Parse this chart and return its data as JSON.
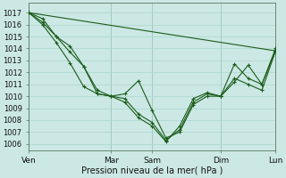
{
  "background_color": "#cce8e4",
  "grid_color": "#aad4cc",
  "line_color": "#1a5c1a",
  "xlabel": "Pression niveau de la mer( hPa )",
  "ylim": [
    1005.5,
    1017.8
  ],
  "yticks": [
    1006,
    1007,
    1008,
    1009,
    1010,
    1011,
    1012,
    1013,
    1014,
    1015,
    1016,
    1017
  ],
  "xlim": [
    0,
    9.0
  ],
  "xtick_labels": [
    "Ven",
    "Mar",
    "Sam",
    "Dim",
    "Lun"
  ],
  "xtick_positions": [
    0,
    3,
    4.5,
    7,
    9
  ],
  "vline_x": [
    0,
    3,
    4.5,
    7,
    9
  ],
  "series": [
    {
      "x": [
        0,
        9.0
      ],
      "y": [
        1017,
        1013.8
      ],
      "markers": false
    },
    {
      "x": [
        0,
        0.5,
        1.0,
        1.5,
        2.0,
        2.5,
        3.0,
        3.5,
        4.0,
        4.5,
        5.0,
        5.5,
        6.0,
        6.5,
        7.0,
        7.5,
        8.0,
        8.5,
        9.0
      ],
      "y": [
        1017,
        1016.5,
        1015,
        1014.2,
        1012.5,
        1010.2,
        1010.0,
        1010.2,
        1011.3,
        1008.8,
        1006.5,
        1007.0,
        1009.3,
        1010.0,
        1010.0,
        1011.2,
        1012.6,
        1011.0,
        1013.8
      ],
      "markers": true
    },
    {
      "x": [
        0,
        0.5,
        1.0,
        1.5,
        2.0,
        2.5,
        3.0,
        3.5,
        4.0,
        4.5,
        5.0,
        5.5,
        6.0,
        6.5,
        7.0,
        7.5,
        8.0,
        8.5,
        9.0
      ],
      "y": [
        1017,
        1016.2,
        1015,
        1013.7,
        1012.5,
        1010.5,
        1010.0,
        1009.8,
        1008.5,
        1007.8,
        1006.3,
        1007.2,
        1009.5,
        1010.2,
        1010.0,
        1012.7,
        1011.5,
        1011.0,
        1014.0
      ],
      "markers": true
    },
    {
      "x": [
        0,
        0.5,
        1.0,
        1.5,
        2.0,
        2.5,
        3.0,
        3.5,
        4.0,
        4.5,
        5.0,
        5.5,
        6.0,
        6.5,
        7.0,
        7.5,
        8.0,
        8.5,
        9.0
      ],
      "y": [
        1017,
        1016.0,
        1014.5,
        1012.8,
        1010.8,
        1010.2,
        1010.0,
        1009.5,
        1008.2,
        1007.5,
        1006.2,
        1007.5,
        1009.8,
        1010.3,
        1010.0,
        1011.5,
        1011.0,
        1010.5,
        1013.8
      ],
      "markers": true
    }
  ]
}
